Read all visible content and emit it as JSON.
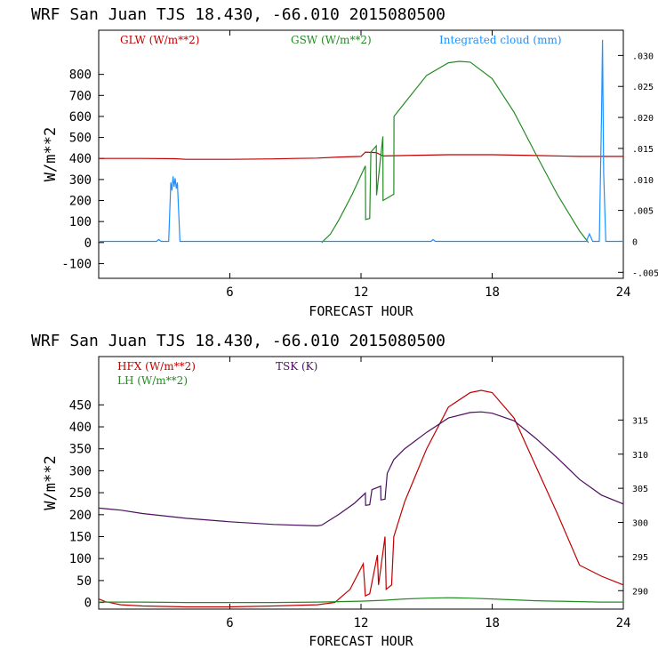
{
  "chart_data": [
    {
      "type": "line",
      "title": "WRF  San Juan TJS  18.430, -66.010  2015080500",
      "xlabel": "FORECAST HOUR",
      "ylabel": "W/m**2",
      "xlim": [
        0,
        24
      ],
      "ylim": [
        -170,
        1010
      ],
      "y2lim": [
        -0.00596,
        0.03407
      ],
      "xticks": [
        6,
        12,
        18,
        24
      ],
      "yticks": [
        -100,
        0,
        100,
        200,
        300,
        400,
        500,
        600,
        700,
        800
      ],
      "y2ticks": [
        -0.005,
        0,
        0.005,
        0.01,
        0.015,
        0.02,
        0.025,
        0.03
      ],
      "y2ticklabels": [
        "-.005",
        "0",
        ".005",
        ".010",
        ".015",
        ".020",
        ".025",
        ".030"
      ],
      "grid": false,
      "legend": "top",
      "series": [
        {
          "name": "GLW (W/m**2)",
          "color": "#c00000",
          "axis": "left",
          "x": [
            0,
            2,
            3.5,
            4,
            6,
            8,
            9,
            10,
            11,
            12,
            12.2,
            12.7,
            13,
            14,
            16,
            18,
            20,
            22,
            24
          ],
          "y": [
            400,
            400,
            399,
            396,
            396,
            398,
            400,
            402,
            407,
            410,
            430,
            428,
            412,
            414,
            418,
            418,
            414,
            410,
            410
          ]
        },
        {
          "name": "GSW (W/m**2)",
          "color": "#238b23",
          "axis": "left",
          "x": [
            10.2,
            10.6,
            11,
            11.6,
            12.2,
            12.21,
            12.4,
            12.45,
            12.7,
            12.71,
            13,
            13.01,
            13.5,
            13.51,
            14,
            15,
            16,
            16.5,
            17,
            18,
            19,
            20,
            21,
            22,
            22.4
          ],
          "y": [
            0,
            40,
            110,
            230,
            365,
            110,
            115,
            430,
            460,
            225,
            505,
            200,
            230,
            600,
            665,
            795,
            855,
            862,
            858,
            780,
            620,
            420,
            225,
            55,
            0
          ]
        },
        {
          "name": "Integrated cloud (mm)",
          "color": "#1e90ff",
          "axis": "right",
          "x": [
            0,
            2.65,
            2.75,
            2.85,
            3.2,
            3.3,
            3.35,
            3.4,
            3.45,
            3.5,
            3.55,
            3.6,
            3.7,
            3.72,
            3.8,
            3.9,
            6,
            12,
            15.2,
            15.3,
            15.4,
            20,
            22.3,
            22.45,
            22.6,
            22.75,
            22.9,
            23.0,
            23.05,
            23.1,
            23.2,
            24
          ],
          "y": [
            0,
            0,
            0.0003,
            0,
            0,
            0.0095,
            0.0082,
            0.0105,
            0.0088,
            0.0102,
            0.0085,
            0.0095,
            0.0012,
            0,
            0,
            0,
            0,
            0,
            0,
            0.0003,
            0,
            0,
            0,
            0.0012,
            0,
            0,
            0,
            0.0195,
            0.0325,
            0.011,
            0,
            0
          ]
        }
      ]
    },
    {
      "type": "line",
      "title": "WRF  San Juan TJS  18.430, -66.010  2015080500",
      "xlabel": "FORECAST HOUR",
      "ylabel": "W/m**2",
      "xlim": [
        0,
        24
      ],
      "ylim": [
        -15,
        560
      ],
      "y2lim": [
        287.3,
        324.3
      ],
      "xticks": [
        6,
        12,
        18,
        24
      ],
      "yticks": [
        0,
        50,
        100,
        150,
        200,
        250,
        300,
        350,
        400,
        450
      ],
      "y2ticks": [
        290,
        295,
        300,
        305,
        310,
        315
      ],
      "grid": false,
      "legend": "top-left",
      "series": [
        {
          "name": "HFX (W/m**2)",
          "color": "#c00000",
          "axis": "left",
          "x": [
            0,
            0.3,
            1,
            2,
            4,
            6,
            8,
            10,
            10.8,
            11.5,
            12.1,
            12.2,
            12.4,
            12.75,
            12.8,
            13.1,
            13.15,
            13.4,
            13.5,
            14,
            15,
            16,
            17,
            17.5,
            18,
            19,
            20,
            21,
            22,
            23,
            24
          ],
          "y": [
            8,
            2,
            -5,
            -8,
            -10,
            -10,
            -8,
            -5,
            0,
            30,
            88,
            15,
            20,
            108,
            40,
            150,
            30,
            40,
            150,
            230,
            350,
            445,
            478,
            483,
            478,
            420,
            310,
            200,
            85,
            60,
            40
          ]
        },
        {
          "name": "LH  (W/m**2)",
          "color": "#238b23",
          "axis": "left",
          "x": [
            0,
            2,
            4,
            6,
            8,
            10,
            11,
            12,
            13,
            14,
            15,
            16,
            17,
            18,
            19,
            20,
            21,
            22,
            23,
            24
          ],
          "y": [
            1,
            1,
            0,
            0,
            0,
            1,
            2,
            3,
            5,
            8,
            10,
            11,
            10,
            8,
            6,
            4,
            3,
            2,
            1,
            1
          ]
        },
        {
          "name": "TSK (K)",
          "color": "#4b0f5f",
          "axis": "right",
          "x": [
            0,
            1,
            2,
            4,
            6,
            8,
            10,
            10.2,
            11,
            11.7,
            12.2,
            12.21,
            12.4,
            12.5,
            12.9,
            12.91,
            13.1,
            13.2,
            13.5,
            14,
            15,
            16,
            17,
            17.5,
            18,
            19,
            20,
            21,
            22,
            23,
            24
          ],
          "y": [
            302.1,
            301.8,
            301.3,
            300.6,
            300.1,
            299.7,
            299.5,
            299.6,
            301.2,
            302.8,
            304.3,
            302.5,
            302.6,
            304.8,
            305.3,
            303.3,
            303.4,
            307.2,
            309.2,
            310.8,
            313.2,
            315.3,
            316.1,
            316.2,
            316.0,
            314.9,
            312.3,
            309.4,
            306.3,
            304.0,
            302.7
          ]
        }
      ]
    }
  ]
}
